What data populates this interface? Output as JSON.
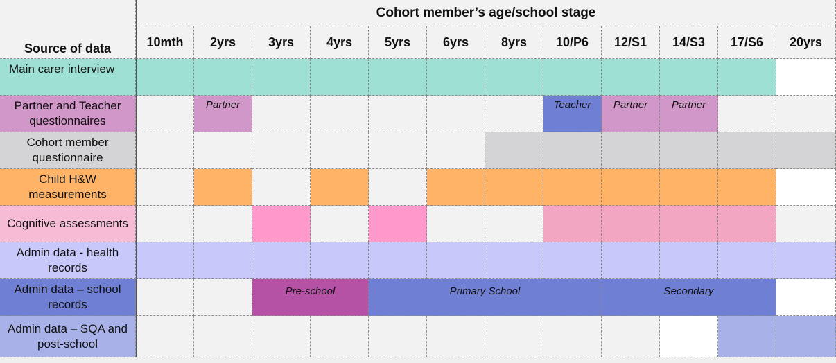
{
  "header": {
    "source_label": "Source of data",
    "stage_title": "Cohort member’s age/school stage",
    "ages": [
      "10mth",
      "2yrs",
      "3yrs",
      "4yrs",
      "5yrs",
      "6yrs",
      "8yrs",
      "10/P6",
      "12/S1",
      "14/S3",
      "17/S6",
      "20yrs"
    ]
  },
  "rows": [
    {
      "label": "Main carer interview",
      "label_bg": "#9ee0d4",
      "align": "left",
      "cells": [
        {
          "bg": "#9ee0d4"
        },
        {
          "bg": "#9ee0d4"
        },
        {
          "bg": "#9ee0d4"
        },
        {
          "bg": "#9ee0d4"
        },
        {
          "bg": "#9ee0d4"
        },
        {
          "bg": "#9ee0d4"
        },
        {
          "bg": "#9ee0d4"
        },
        {
          "bg": "#9ee0d4"
        },
        {
          "bg": "#9ee0d4"
        },
        {
          "bg": "#9ee0d4"
        },
        {
          "bg": "#9ee0d4"
        },
        {
          "bg": "#ffffff"
        }
      ]
    },
    {
      "label": "Partner and Teacher questionnaires",
      "label_bg": "#d197c8",
      "cells": [
        {
          "bg": "#f2f2f2"
        },
        {
          "bg": "#d197c8",
          "text": "Partner"
        },
        {
          "bg": "#f2f2f2"
        },
        {
          "bg": "#f2f2f2"
        },
        {
          "bg": "#f2f2f2"
        },
        {
          "bg": "#f2f2f2"
        },
        {
          "bg": "#f2f2f2"
        },
        {
          "bg": "#6f7fd3",
          "text": "Teacher"
        },
        {
          "bg": "#d197c8",
          "text": "Partner"
        },
        {
          "bg": "#d197c8",
          "text": "Partner"
        },
        {
          "bg": "#f2f2f2"
        },
        {
          "bg": "#f2f2f2"
        }
      ]
    },
    {
      "label": "Cohort member questionnaire",
      "label_bg": "#d4d4d6",
      "cells": [
        {
          "bg": "#f2f2f2"
        },
        {
          "bg": "#f2f2f2"
        },
        {
          "bg": "#f2f2f2"
        },
        {
          "bg": "#f2f2f2"
        },
        {
          "bg": "#f2f2f2"
        },
        {
          "bg": "#f2f2f2"
        },
        {
          "bg": "#d4d4d6"
        },
        {
          "bg": "#d4d4d6"
        },
        {
          "bg": "#d4d4d6"
        },
        {
          "bg": "#d4d4d6"
        },
        {
          "bg": "#d4d4d6"
        },
        {
          "bg": "#d4d4d6"
        }
      ]
    },
    {
      "label": "Child H&W measurements",
      "label_bg": "#ffb366",
      "cells": [
        {
          "bg": "#f2f2f2"
        },
        {
          "bg": "#ffb366"
        },
        {
          "bg": "#f2f2f2"
        },
        {
          "bg": "#ffb366"
        },
        {
          "bg": "#f2f2f2"
        },
        {
          "bg": "#ffb366"
        },
        {
          "bg": "#ffb366"
        },
        {
          "bg": "#ffb366"
        },
        {
          "bg": "#ffb366"
        },
        {
          "bg": "#ffb366"
        },
        {
          "bg": "#ffb366"
        },
        {
          "bg": "#ffffff"
        }
      ]
    },
    {
      "label": "Cognitive assessments",
      "label_bg": "#f6bcd6",
      "cells": [
        {
          "bg": "#f2f2f2"
        },
        {
          "bg": "#f2f2f2"
        },
        {
          "bg": "#ff99cc"
        },
        {
          "bg": "#f2f2f2"
        },
        {
          "bg": "#ff99cc"
        },
        {
          "bg": "#f2f2f2"
        },
        {
          "bg": "#f2f2f2"
        },
        {
          "bg": "#f2a6c2"
        },
        {
          "bg": "#f2a6c2"
        },
        {
          "bg": "#f2a6c2"
        },
        {
          "bg": "#f2a6c2"
        },
        {
          "bg": "#f2f2f2"
        }
      ]
    },
    {
      "label": "Admin data - health records",
      "label_bg": "#c8c9fa",
      "cells": [
        {
          "bg": "#c8c9fa"
        },
        {
          "bg": "#c8c9fa"
        },
        {
          "bg": "#c8c9fa"
        },
        {
          "bg": "#c8c9fa"
        },
        {
          "bg": "#c8c9fa"
        },
        {
          "bg": "#c8c9fa"
        },
        {
          "bg": "#c8c9fa"
        },
        {
          "bg": "#c8c9fa"
        },
        {
          "bg": "#c8c9fa"
        },
        {
          "bg": "#c8c9fa"
        },
        {
          "bg": "#c8c9fa"
        },
        {
          "bg": "#c8c9fa"
        }
      ]
    },
    {
      "label": "Admin data – school records",
      "label_bg": "#6f7fd3",
      "cells": [
        {
          "bg": "#f2f2f2"
        },
        {
          "bg": "#f2f2f2"
        },
        {
          "bg": "#b552a6",
          "span": 2,
          "text": "Pre-school"
        },
        {
          "bg": "#6f7fd3",
          "span": 4,
          "text": "Primary School"
        },
        {
          "bg": "#6f7fd3",
          "span": 3,
          "text": "Secondary"
        },
        {
          "bg": "#ffffff"
        }
      ]
    },
    {
      "label": "Admin data – SQA and post-school",
      "label_bg": "#a8b2e8",
      "cells": [
        {
          "bg": "#f2f2f2"
        },
        {
          "bg": "#f2f2f2"
        },
        {
          "bg": "#f2f2f2"
        },
        {
          "bg": "#f2f2f2"
        },
        {
          "bg": "#f2f2f2"
        },
        {
          "bg": "#f2f2f2"
        },
        {
          "bg": "#f2f2f2"
        },
        {
          "bg": "#f2f2f2"
        },
        {
          "bg": "#f2f2f2"
        },
        {
          "bg": "#ffffff"
        },
        {
          "bg": "#a8b2e8"
        },
        {
          "bg": "#a8b2e8"
        }
      ]
    }
  ]
}
